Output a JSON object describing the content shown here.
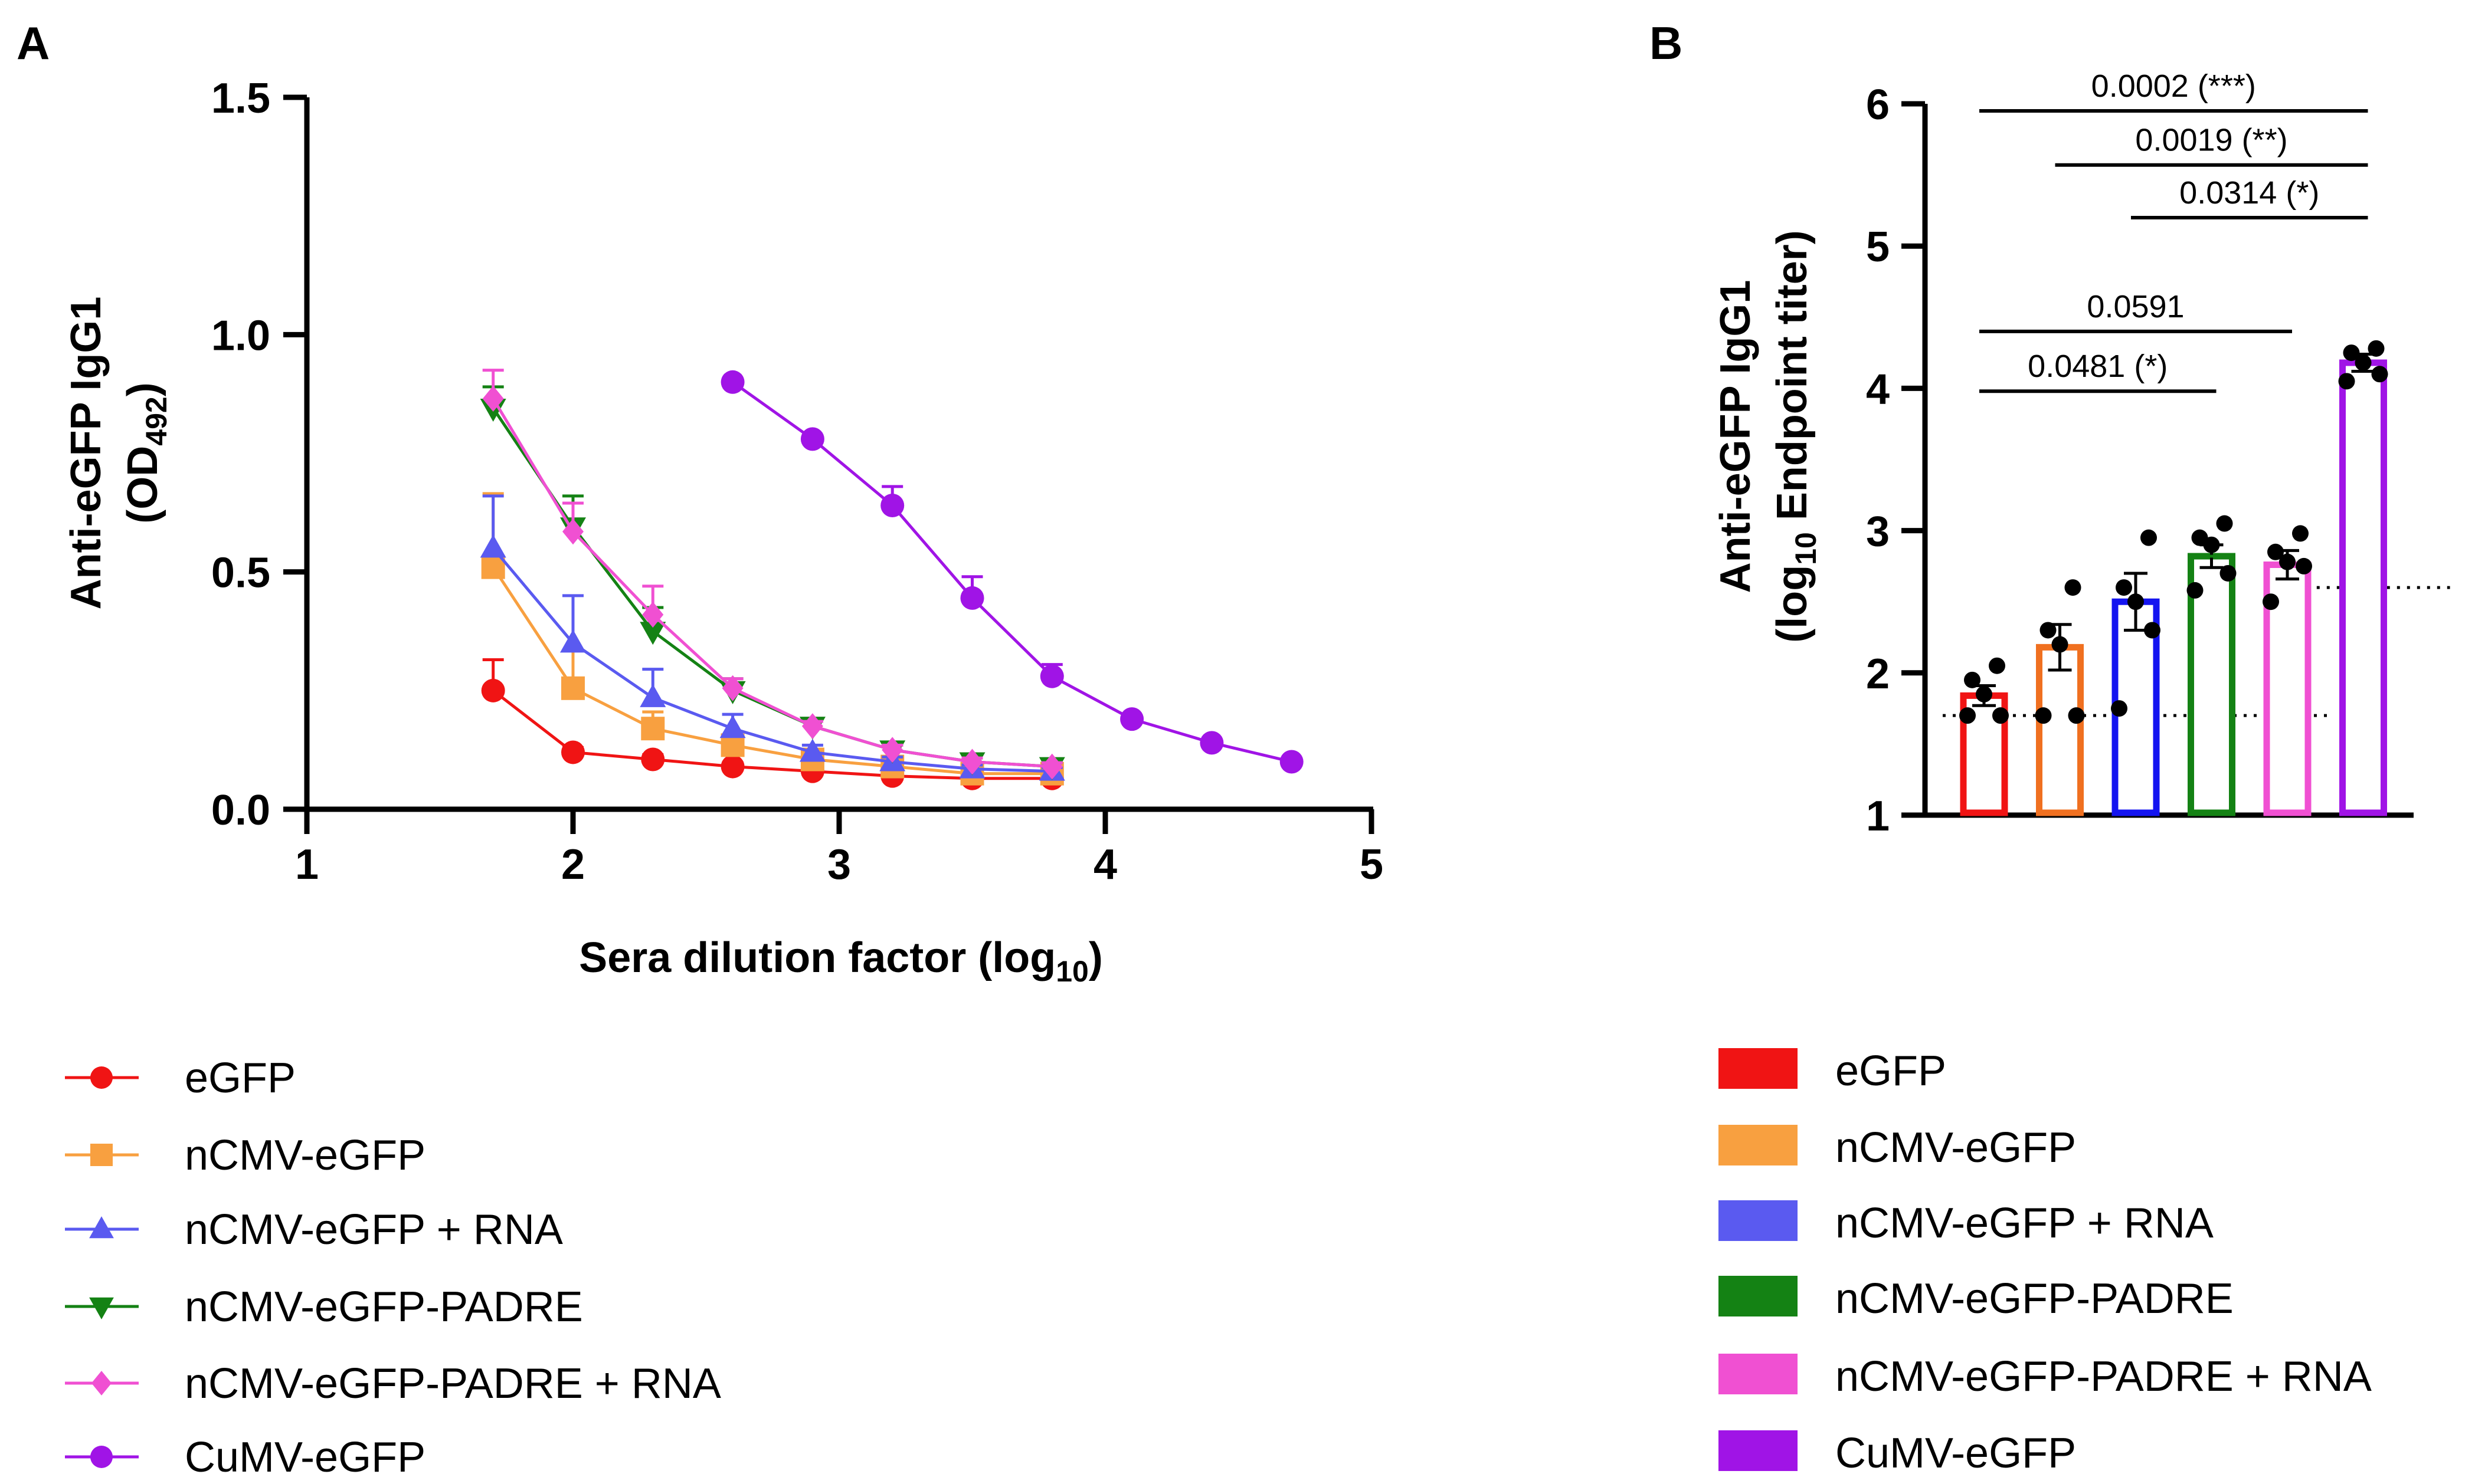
{
  "panel_a": {
    "letter": "A",
    "legend": [
      {
        "label": "eGFP",
        "color": "#f01414",
        "marker": "circle"
      },
      {
        "label": "nCMV-eGFP",
        "color": "#f8a040",
        "marker": "square"
      },
      {
        "label": "nCMV-eGFP + RNA",
        "color": "#5a5af0",
        "marker": "triangle"
      },
      {
        "label": "nCMV-eGFP-PADRE",
        "color": "#148214",
        "marker": "triangle-down"
      },
      {
        "label": "nCMV-eGFP-PADRE + RNA",
        "color": "#f050d2",
        "marker": "diamond"
      },
      {
        "label": "CuMV-eGFP",
        "color": "#a014e6",
        "marker": "circle"
      }
    ]
  },
  "panel_b": {
    "letter": "B",
    "legend": [
      {
        "label": "eGFP",
        "color": "#f01414"
      },
      {
        "label": "nCMV-eGFP",
        "color": "#f8a040"
      },
      {
        "label": "nCMV-eGFP + RNA",
        "color": "#5a5af0"
      },
      {
        "label": "nCMV-eGFP-PADRE",
        "color": "#148214"
      },
      {
        "label": "nCMV-eGFP-PADRE + RNA",
        "color": "#f050d2"
      },
      {
        "label": "CuMV-eGFP",
        "color": "#a014e6"
      }
    ]
  },
  "chart_data": [
    {
      "type": "line",
      "panel": "A",
      "xlabel": "Sera dilution factor (log",
      "xlabel_sub": "10",
      "xlabel_end": ")",
      "ylabel_line1": "Anti-eGFP IgG1",
      "ylabel_line2": "(OD",
      "ylabel_sub": "492",
      "ylabel_end": ")",
      "xlim": [
        1,
        5
      ],
      "ylim": [
        0,
        1.5
      ],
      "xticks": [
        "1",
        "2",
        "3",
        "4",
        "5"
      ],
      "yticks": [
        "0.0",
        "0.5",
        "1.0",
        "1.5"
      ],
      "series": [
        {
          "name": "eGFP",
          "color": "#f01414",
          "marker": "circle",
          "x": [
            1.7,
            2.0,
            2.3,
            2.6,
            2.9,
            3.2,
            3.5,
            3.8
          ],
          "y": [
            0.25,
            0.12,
            0.105,
            0.09,
            0.08,
            0.07,
            0.065,
            0.065
          ],
          "err": [
            0.065,
            0.01,
            0.01,
            0.008,
            0.006,
            0.005,
            0.005,
            0.005
          ]
        },
        {
          "name": "nCMV-eGFP",
          "color": "#f8a040",
          "marker": "square",
          "x": [
            1.7,
            2.0,
            2.3,
            2.6,
            2.9,
            3.2,
            3.5,
            3.8
          ],
          "y": [
            0.51,
            0.255,
            0.17,
            0.135,
            0.105,
            0.09,
            0.075,
            0.075
          ],
          "err": [
            0.155,
            0.08,
            0.035,
            0.02,
            0.01,
            0.01,
            0.008,
            0.008
          ]
        },
        {
          "name": "nCMV-eGFP + RNA",
          "color": "#5a5af0",
          "marker": "triangle",
          "x": [
            1.7,
            2.0,
            2.3,
            2.6,
            2.9,
            3.2,
            3.5,
            3.8
          ],
          "y": [
            0.55,
            0.35,
            0.235,
            0.17,
            0.12,
            0.1,
            0.085,
            0.08
          ],
          "err": [
            0.11,
            0.1,
            0.06,
            0.03,
            0.015,
            0.01,
            0.008,
            0.008
          ]
        },
        {
          "name": "nCMV-eGFP-PADRE",
          "color": "#148214",
          "marker": "triangle-down",
          "x": [
            1.7,
            2.0,
            2.3,
            2.6,
            2.9,
            3.2,
            3.5,
            3.8
          ],
          "y": [
            0.845,
            0.595,
            0.375,
            0.25,
            0.175,
            0.125,
            0.1,
            0.09
          ],
          "err": [
            0.045,
            0.065,
            0.05,
            0.025,
            0.015,
            0.01,
            0.008,
            0.008
          ]
        },
        {
          "name": "nCMV-eGFP-PADRE + RNA",
          "color": "#f050d2",
          "marker": "diamond",
          "x": [
            1.7,
            2.0,
            2.3,
            2.6,
            2.9,
            3.2,
            3.5,
            3.8
          ],
          "y": [
            0.865,
            0.585,
            0.41,
            0.255,
            0.175,
            0.125,
            0.1,
            0.09
          ],
          "err": [
            0.06,
            0.06,
            0.06,
            0.02,
            0.01,
            0.01,
            0.008,
            0.008
          ]
        },
        {
          "name": "CuMV-eGFP",
          "color": "#a014e6",
          "marker": "circle",
          "x": [
            2.6,
            2.9,
            3.2,
            3.5,
            3.8,
            4.1,
            4.4,
            4.7
          ],
          "y": [
            0.9,
            0.78,
            0.64,
            0.445,
            0.28,
            0.19,
            0.14,
            0.1
          ],
          "err": [
            0.0,
            0.0,
            0.04,
            0.045,
            0.025,
            0.0,
            0.0,
            0.0
          ]
        }
      ]
    },
    {
      "type": "bar",
      "panel": "B",
      "ylabel_line1": "Anti-eGFP IgG1",
      "ylabel_line2a": "(log",
      "ylabel_sub": "10",
      "ylabel_line2b": " Endpoint titer)",
      "ylim": [
        1,
        6
      ],
      "yticks": [
        "1",
        "2",
        "3",
        "4",
        "5",
        "6"
      ],
      "categories": [
        "eGFP",
        "nCMV-eGFP",
        "nCMV-eGFP + RNA",
        "nCMV-eGFP-PADRE",
        "nCMV-eGFP-PADRE + RNA",
        "CuMV-eGFP"
      ],
      "colors": [
        "#f01414",
        "#f8a040",
        "#5a5af0",
        "#148214",
        "#f050d2",
        "#a014e6"
      ],
      "edge_colors": [
        "#f01414",
        "#f07020",
        "#1414f0",
        "#148214",
        "#f050d2",
        "#a014e6"
      ],
      "values": [
        1.84,
        2.18,
        2.5,
        2.82,
        2.76,
        4.18
      ],
      "sem": [
        0.07,
        0.16,
        0.2,
        0.08,
        0.1,
        0.06
      ],
      "points": [
        [
          1.7,
          1.7,
          1.85,
          1.95,
          2.05
        ],
        [
          1.7,
          1.7,
          2.2,
          2.3,
          2.6
        ],
        [
          1.75,
          2.3,
          2.5,
          2.6,
          2.95
        ],
        [
          2.58,
          2.7,
          2.9,
          2.95,
          3.05
        ],
        [
          2.5,
          2.75,
          2.78,
          2.85,
          2.98
        ],
        [
          4.05,
          4.1,
          4.18,
          4.25,
          4.28
        ]
      ],
      "detection_limits": [
        {
          "y": 1.7,
          "x_from_bar": 0,
          "x_to_bar": 4
        },
        {
          "y": 2.6,
          "x_from_bar": 4.8,
          "x_to_bar": 5.6
        }
      ],
      "comparisons": [
        {
          "from": 0,
          "to": 5,
          "label": "0.0002 (***)",
          "y": 5.95
        },
        {
          "from": 1,
          "to": 5,
          "label": "0.0019 (**)",
          "y": 5.57
        },
        {
          "from": 2,
          "to": 5,
          "label": "0.0314 (*)",
          "y": 5.2
        },
        {
          "from": 0,
          "to": 4,
          "label": "0.0591",
          "y": 4.4
        },
        {
          "from": 0,
          "to": 3,
          "label": "0.0481 (*)",
          "y": 3.98
        }
      ]
    }
  ]
}
